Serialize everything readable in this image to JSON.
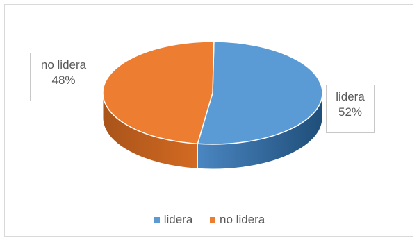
{
  "chart_data": {
    "type": "pie",
    "categories": [
      "lidera",
      "no lidera"
    ],
    "values": [
      52,
      48
    ],
    "data_labels": [
      {
        "name": "lidera",
        "value": "52%"
      },
      {
        "name": "no lidera",
        "value": "48%"
      }
    ],
    "colors": [
      "#5b9bd5",
      "#ed7d31"
    ],
    "legend_position": "bottom",
    "title": ""
  },
  "legend": {
    "items": [
      {
        "label": "lidera",
        "color": "#5b9bd5"
      },
      {
        "label": "no lidera",
        "color": "#ed7d31"
      }
    ]
  }
}
